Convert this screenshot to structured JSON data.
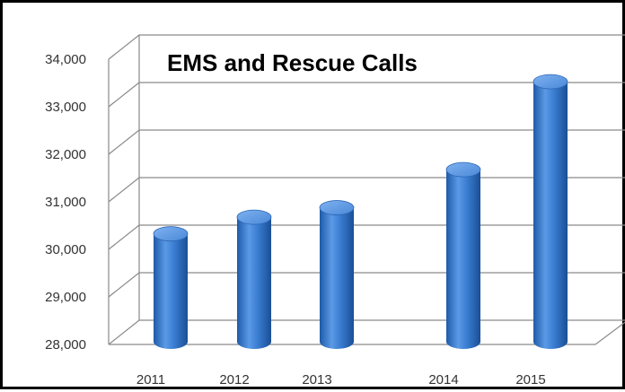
{
  "chart_data": {
    "type": "bar",
    "style": "3d-cylinder",
    "title": "EMS and Rescue Calls",
    "categories": [
      "2011",
      "2012",
      "2013",
      "2014",
      "2015"
    ],
    "values": [
      30100,
      30450,
      30650,
      31450,
      33300
    ],
    "ylim": [
      28000,
      34000
    ],
    "yticks": [
      "28,000",
      "29,000",
      "30,000",
      "31,000",
      "32,000",
      "33,000",
      "34,000"
    ],
    "grid": true,
    "legend": "none",
    "bar_color": "#3a7dd2",
    "border_color": "#000000"
  }
}
